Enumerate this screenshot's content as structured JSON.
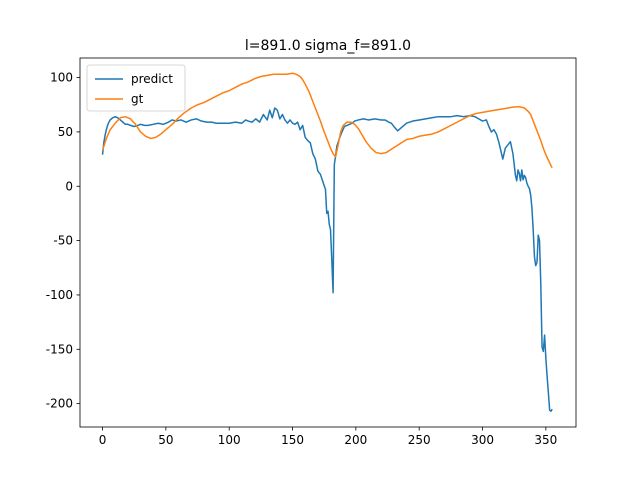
{
  "chart_data": {
    "type": "line",
    "title": "l=891.0 sigma_f=891.0",
    "xlabel": "",
    "ylabel": "",
    "xlim": [
      -17.8,
      373.8
    ],
    "ylim": [
      -221.5,
      118
    ],
    "xticks": [
      0,
      50,
      100,
      150,
      200,
      250,
      300,
      350
    ],
    "yticks": [
      -200,
      -150,
      -100,
      -50,
      0,
      50,
      100
    ],
    "grid": false,
    "legend_position": "top-left",
    "series": [
      {
        "name": "predict",
        "color": "#1f77b4",
        "x": [
          0,
          1,
          2,
          3,
          4,
          5,
          6,
          7,
          8,
          10,
          12,
          14,
          16,
          18,
          20,
          22,
          25,
          28,
          30,
          33,
          36,
          40,
          44,
          48,
          52,
          55,
          58,
          62,
          66,
          70,
          74,
          78,
          82,
          86,
          90,
          95,
          100,
          105,
          110,
          113,
          115,
          118,
          121,
          124,
          127,
          130,
          132,
          134,
          136,
          138,
          140,
          142,
          144,
          146,
          148,
          150,
          152,
          154,
          156,
          158,
          160,
          162,
          164,
          166,
          168,
          170,
          172,
          174,
          176,
          177,
          178,
          179,
          180,
          181,
          182,
          183,
          184,
          185,
          187,
          189,
          191,
          193,
          195,
          197,
          199,
          202,
          206,
          210,
          215,
          220,
          223,
          226,
          228,
          230,
          233,
          236,
          240,
          245,
          250,
          255,
          260,
          265,
          270,
          275,
          280,
          285,
          290,
          294,
          297,
          300,
          303,
          305,
          307,
          309,
          311,
          313,
          315,
          316,
          318,
          320,
          322,
          324,
          325,
          326,
          327,
          328,
          329,
          330,
          331,
          332,
          333,
          334,
          335,
          336,
          337,
          338,
          339,
          340,
          341,
          342,
          343,
          344,
          345,
          346,
          347,
          348,
          349,
          350,
          351,
          352,
          353,
          354,
          355
        ],
        "values": [
          29,
          40,
          47,
          52,
          56,
          59,
          61,
          62,
          63,
          64,
          63,
          61,
          59,
          57,
          57,
          56,
          55,
          56,
          57,
          56,
          56,
          57,
          58,
          57,
          59,
          61,
          60,
          61,
          59,
          61,
          62,
          60,
          59,
          59,
          58,
          58,
          58,
          59,
          58,
          61,
          60,
          59,
          62,
          59,
          66,
          61,
          70,
          63,
          72,
          70,
          62,
          66,
          61,
          58,
          61,
          58,
          57,
          59,
          52,
          56,
          45,
          42,
          40,
          30,
          25,
          14,
          11,
          4,
          -3,
          -25,
          -23,
          -35,
          -40,
          -68,
          -98,
          20,
          28,
          37,
          44,
          50,
          55,
          56,
          57,
          58,
          60,
          61,
          62,
          61,
          62,
          61,
          61,
          59,
          58,
          55,
          51,
          54,
          58,
          60,
          61,
          62,
          63,
          64,
          64,
          64,
          65,
          64,
          65,
          64,
          62,
          60,
          61,
          55,
          50,
          52,
          48,
          40,
          30,
          25,
          35,
          38,
          41,
          30,
          20,
          10,
          5,
          15,
          12,
          5,
          15,
          6,
          10,
          8,
          3,
          0,
          -2,
          -8,
          -20,
          -40,
          -65,
          -73,
          -70,
          -45,
          -50,
          -90,
          -148,
          -152,
          -137,
          -158,
          -175,
          -190,
          -206,
          -207,
          -205
        ]
      },
      {
        "name": "gt",
        "color": "#ff7f0e",
        "x": [
          0,
          3,
          6,
          10,
          14,
          18,
          22,
          26,
          30,
          34,
          38,
          42,
          46,
          50,
          55,
          60,
          65,
          70,
          75,
          80,
          85,
          90,
          95,
          100,
          105,
          110,
          115,
          120,
          125,
          130,
          135,
          140,
          145,
          150,
          153,
          156,
          158,
          160,
          163,
          166,
          169,
          172,
          175,
          178,
          180,
          182,
          184,
          186,
          188,
          190,
          193,
          196,
          199,
          202,
          205,
          208,
          212,
          216,
          220,
          224,
          228,
          232,
          236,
          240,
          245,
          250,
          255,
          260,
          265,
          270,
          275,
          280,
          285,
          290,
          295,
          300,
          305,
          310,
          315,
          320,
          325,
          330,
          333,
          336,
          338,
          340,
          342,
          344,
          346,
          348,
          350,
          352,
          354,
          355
        ],
        "values": [
          33,
          44,
          52,
          58,
          63,
          64,
          62,
          57,
          50,
          46,
          44,
          45,
          48,
          52,
          57,
          63,
          68,
          72,
          75,
          77,
          80,
          83,
          86,
          88,
          91,
          94,
          96,
          99,
          101,
          102,
          103,
          103,
          103,
          104,
          103,
          101,
          98,
          94,
          87,
          78,
          69,
          60,
          50,
          41,
          35,
          30,
          27,
          38,
          50,
          56,
          59,
          59,
          57,
          53,
          47,
          41,
          35,
          31,
          30,
          31,
          34,
          37,
          40,
          43,
          44,
          46,
          47,
          48,
          50,
          53,
          56,
          59,
          62,
          65,
          67,
          68,
          69,
          70,
          71,
          72,
          73,
          73,
          72,
          69,
          66,
          60,
          54,
          48,
          42,
          35,
          29,
          24,
          19,
          17
        ]
      }
    ]
  }
}
